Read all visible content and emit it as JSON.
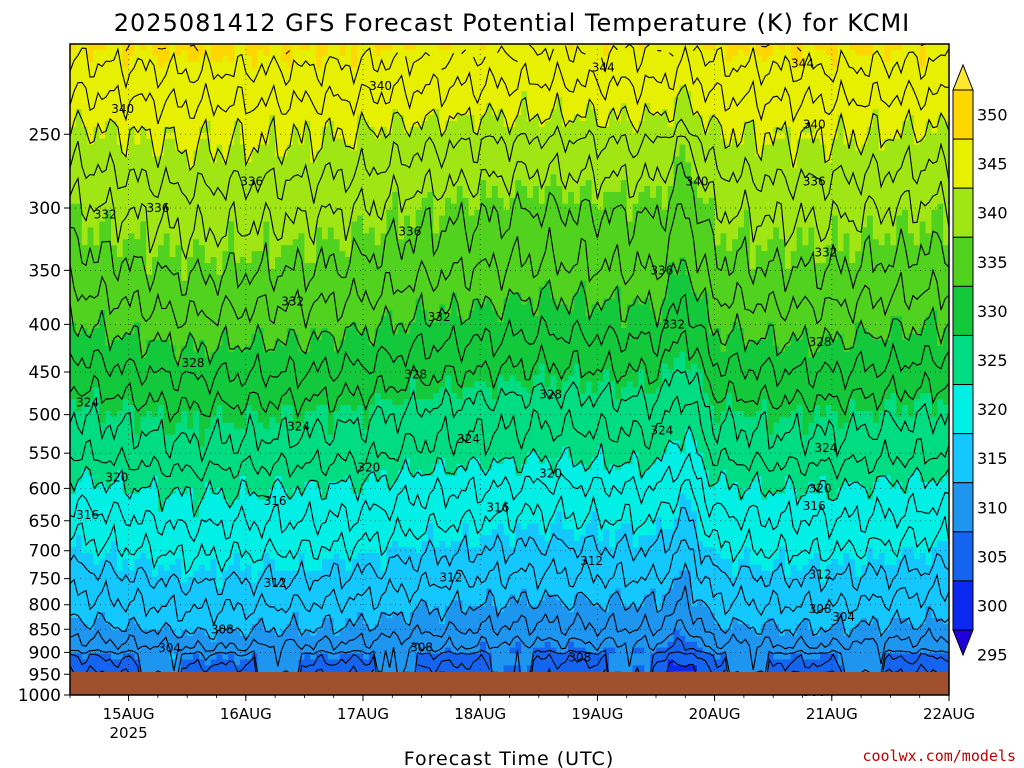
{
  "title": "2025081412 GFS Forecast Potential Temperature (K) for KCMI",
  "credit": "coolwx.com/models",
  "chart_data": {
    "type": "heatmap",
    "title": "2025081412 GFS Forecast Potential Temperature (K) for KCMI",
    "xlabel": "Forecast Time (UTC)",
    "ylabel": "",
    "x_ticks": [
      "15AUG",
      "16AUG",
      "17AUG",
      "18AUG",
      "19AUG",
      "20AUG",
      "21AUG",
      "22AUG"
    ],
    "x_tick_sublabel": "2025",
    "xlim": [
      "2025-08-14 12Z",
      "2025-08-22 00Z"
    ],
    "y_ticks": [
      250,
      300,
      350,
      400,
      450,
      500,
      550,
      600,
      650,
      700,
      750,
      800,
      850,
      900,
      950,
      1000
    ],
    "ylim": [
      1000,
      200
    ],
    "y_scale": "log-pressure",
    "grid": true,
    "colorbar": {
      "levels": [
        295,
        300,
        305,
        310,
        315,
        320,
        325,
        330,
        335,
        340,
        345,
        350
      ],
      "colors": [
        "#1e00dc",
        "#0a28f0",
        "#1464f0",
        "#1e96f0",
        "#14c8ff",
        "#00f0e6",
        "#00dc82",
        "#14c83c",
        "#50d21e",
        "#a0e614",
        "#e6f000",
        "#ffd700",
        "#ffe632"
      ],
      "extend": "both"
    },
    "profile": {
      "p": [
        1000,
        950,
        900,
        850,
        800,
        750,
        700,
        650,
        600,
        550,
        500,
        450,
        400,
        350,
        300,
        250,
        200
      ],
      "theta": [
        300,
        303,
        306,
        309,
        311,
        313,
        315,
        317,
        319,
        322,
        324,
        327,
        330,
        333,
        335.5,
        339.5,
        345
      ]
    },
    "time_anomaly": {
      "day": [
        0,
        0.5,
        1,
        1.5,
        2,
        2.5,
        3,
        3.5,
        4,
        4.5,
        5,
        5.25,
        5.5,
        6,
        6.5,
        7,
        7.5
      ],
      "dk": [
        0,
        0.8,
        1.5,
        1.2,
        1.0,
        0.5,
        -0.5,
        -1,
        -1.5,
        -1.2,
        -1,
        -3.5,
        0.5,
        1,
        1,
        0.5,
        0
      ]
    },
    "contour_labels": [
      {
        "value": 340,
        "day": 0.45,
        "p": 235
      },
      {
        "value": 340,
        "day": 2.65,
        "p": 222
      },
      {
        "value": 344,
        "day": 4.55,
        "p": 212
      },
      {
        "value": 344,
        "day": 6.25,
        "p": 210
      },
      {
        "value": 340,
        "day": 6.35,
        "p": 244
      },
      {
        "value": 340,
        "day": 5.35,
        "p": 281
      },
      {
        "value": 336,
        "day": 1.55,
        "p": 281
      },
      {
        "value": 336,
        "day": 0.75,
        "p": 300
      },
      {
        "value": 332,
        "day": 0.3,
        "p": 305
      },
      {
        "value": 336,
        "day": 2.9,
        "p": 318
      },
      {
        "value": 336,
        "day": 6.35,
        "p": 281
      },
      {
        "value": 332,
        "day": 6.45,
        "p": 335
      },
      {
        "value": 336,
        "day": 5.05,
        "p": 350
      },
      {
        "value": 332,
        "day": 1.9,
        "p": 378
      },
      {
        "value": 332,
        "day": 3.15,
        "p": 393
      },
      {
        "value": 332,
        "day": 5.15,
        "p": 400
      },
      {
        "value": 328,
        "day": 6.4,
        "p": 418
      },
      {
        "value": 328,
        "day": 1.05,
        "p": 440
      },
      {
        "value": 328,
        "day": 2.95,
        "p": 453
      },
      {
        "value": 328,
        "day": 4.1,
        "p": 476
      },
      {
        "value": 324,
        "day": 0.15,
        "p": 485
      },
      {
        "value": 324,
        "day": 1.95,
        "p": 515
      },
      {
        "value": 324,
        "day": 3.4,
        "p": 531
      },
      {
        "value": 324,
        "day": 5.05,
        "p": 520
      },
      {
        "value": 324,
        "day": 6.45,
        "p": 543
      },
      {
        "value": 320,
        "day": 0.4,
        "p": 584
      },
      {
        "value": 320,
        "day": 2.55,
        "p": 570
      },
      {
        "value": 320,
        "day": 4.1,
        "p": 578
      },
      {
        "value": 320,
        "day": 6.4,
        "p": 600
      },
      {
        "value": 316,
        "day": 0.15,
        "p": 641
      },
      {
        "value": 316,
        "day": 1.75,
        "p": 619
      },
      {
        "value": 316,
        "day": 3.65,
        "p": 629
      },
      {
        "value": 316,
        "day": 6.35,
        "p": 627
      },
      {
        "value": 312,
        "day": 4.45,
        "p": 718
      },
      {
        "value": 312,
        "day": 1.75,
        "p": 758
      },
      {
        "value": 312,
        "day": 3.25,
        "p": 748
      },
      {
        "value": 312,
        "day": 6.4,
        "p": 742
      },
      {
        "value": 308,
        "day": 1.3,
        "p": 850
      },
      {
        "value": 308,
        "day": 3.0,
        "p": 889
      },
      {
        "value": 308,
        "day": 4.35,
        "p": 912
      },
      {
        "value": 308,
        "day": 6.4,
        "p": 808
      },
      {
        "value": 304,
        "day": 0.85,
        "p": 890
      },
      {
        "value": 304,
        "day": 6.6,
        "p": 825
      },
      {
        "value": 300,
        "day": 6.35,
        "p": 992
      }
    ],
    "surface_fill": "#a0502d"
  }
}
